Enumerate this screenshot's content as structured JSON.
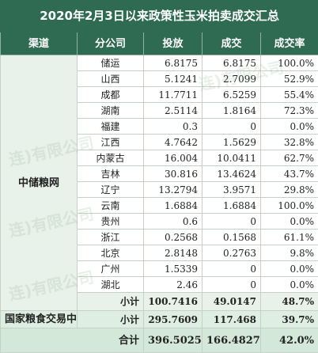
{
  "title": "2020年2月3日以来政策性玉米拍卖成交汇总",
  "headers": {
    "channel": "渠道",
    "company": "分公司",
    "offered": "投放",
    "traded": "成交",
    "rate": "成交率"
  },
  "channel_name": "中储粮网",
  "rows": [
    {
      "region": "储运",
      "offered": "6.8175",
      "traded": "6.8175",
      "rate": "100.0%"
    },
    {
      "region": "山西",
      "offered": "5.1241",
      "traded": "2.7099",
      "rate": "52.9%"
    },
    {
      "region": "成都",
      "offered": "11.7711",
      "traded": "6.5259",
      "rate": "55.4%"
    },
    {
      "region": "湖南",
      "offered": "2.5114",
      "traded": "1.8164",
      "rate": "72.3%"
    },
    {
      "region": "福建",
      "offered": "0.3",
      "traded": "0",
      "rate": "0.0%"
    },
    {
      "region": "江西",
      "offered": "4.7642",
      "traded": "1.5629",
      "rate": "32.8%"
    },
    {
      "region": "内蒙古",
      "offered": "16.004",
      "traded": "10.0411",
      "rate": "62.7%"
    },
    {
      "region": "吉林",
      "offered": "30.816",
      "traded": "13.4624",
      "rate": "43.7%"
    },
    {
      "region": "辽宁",
      "offered": "13.2794",
      "traded": "3.9571",
      "rate": "29.8%"
    },
    {
      "region": "云南",
      "offered": "1.6884",
      "traded": "1.6884",
      "rate": "100.0%"
    },
    {
      "region": "贵州",
      "offered": "0.6",
      "traded": "0",
      "rate": "0.0%"
    },
    {
      "region": "浙江",
      "offered": "0.2568",
      "traded": "0.1568",
      "rate": "61.1%"
    },
    {
      "region": "北京",
      "offered": "2.8148",
      "traded": "0.2763",
      "rate": "9.8%"
    },
    {
      "region": "广州",
      "offered": "1.5339",
      "traded": "0",
      "rate": "0.0%"
    },
    {
      "region": "湖北",
      "offered": "2.46",
      "traded": "0",
      "rate": "0.0%"
    }
  ],
  "subtotal": {
    "label": "小计",
    "offered": "100.7416",
    "traded": "49.0147",
    "rate": "48.7%"
  },
  "national": {
    "channel": "国家粮食交易中心",
    "label": "小计",
    "offered": "295.7609",
    "traded": "117.468",
    "rate": "39.7%"
  },
  "total": {
    "label": "合计",
    "offered": "396.5025",
    "traded": "166.4827",
    "rate": "42.0%"
  },
  "watermark": "连)有限公司",
  "colors": {
    "header_bg": "#2f6b52",
    "header_text": "#ffffff",
    "row_accent": "#e8f1ea"
  }
}
